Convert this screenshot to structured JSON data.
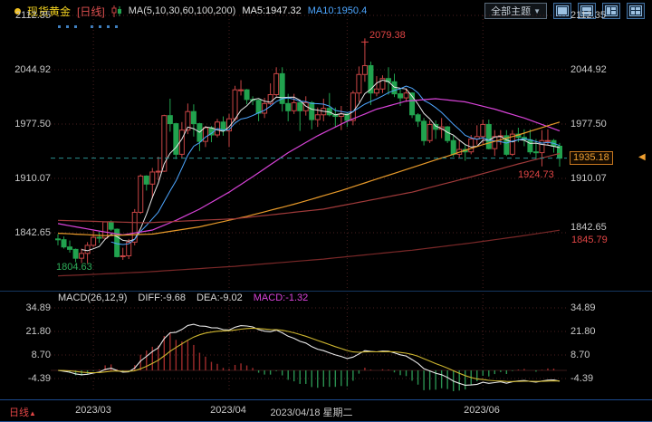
{
  "header": {
    "symbol": "现货黄金",
    "period_tag": "[日线]",
    "ma_label": "MA(5,10,30,60,100,200)",
    "ma5_label": "MA5:1947.32",
    "ma10_label": "MA10:1950.4",
    "theme_button": "全部主题",
    "theme_caret": "▼"
  },
  "main_chart": {
    "y_axis_labels": [
      "2112.35",
      "2044.92",
      "1977.50",
      "1910.07",
      "1842.65"
    ],
    "annotations": {
      "high": "2079.38",
      "last_low": "1924.73",
      "ma200_value": "1845.79",
      "start_low": "1804.63",
      "current_price": "1935.18"
    }
  },
  "macd_panel": {
    "title": "MACD(26,12,9)",
    "diff_label": "DIFF:-9.68",
    "dea_label": "DEA:-9.02",
    "macd_label": "MACD:-1.32",
    "y_axis_labels": [
      "34.89",
      "21.80",
      "8.70",
      "-4.39"
    ]
  },
  "x_axis": {
    "period_label": "日线",
    "period_caret": "▲",
    "labels": [
      "2023/03",
      "2023/04",
      "2023/06"
    ],
    "crosshair_label": "2023/04/18 星期二"
  },
  "colors": {
    "up": "#c84545",
    "down": "#21a24e",
    "ma5": "#e8e8e8",
    "ma10": "#4da6ff",
    "ma30": "#d843d8",
    "ma60": "#e89a2a",
    "ma100": "#a03a3a",
    "ma200": "#7a2828",
    "diff_line": "#e8e8e8",
    "dea_line": "#cdb52f",
    "hist_pos": "#9e2b2b",
    "hist_neg": "#2a9050",
    "grid": "#4a2020",
    "price_line": "#2a8f8f",
    "accent_orange": "#f0a030",
    "red_text": "#e04545",
    "green_text": "#2fae5a",
    "axis_text": "#c8c8c8",
    "panel_border": "#1c4a8c"
  },
  "chart_data": {
    "type": "candlestick",
    "title": "现货黄金 日线 (spot gold daily with MA overlays and MACD)",
    "y_axis_ticks": [
      2112.35,
      2044.92,
      1977.5,
      1910.07,
      1842.65
    ],
    "macd_axis_ticks": [
      34.89,
      21.8,
      8.7,
      -4.39
    ],
    "current_price": 1935.18,
    "summary": {
      "ma5": 1947.32,
      "ma10": 1950.4,
      "diff": -9.68,
      "dea": -9.02,
      "macd": -1.32,
      "period_high": 2079.38,
      "session_low": 1924.73,
      "start_low": 1804.63,
      "ma200_last": 1845.79
    },
    "month_tick_indices": [
      6,
      29,
      49,
      72
    ],
    "labeled_ticks": [
      {
        "index": 6,
        "label": "2023/03"
      },
      {
        "index": 29,
        "label": "2023/04"
      },
      {
        "index": 40,
        "label": "2023/04/18 星期二"
      },
      {
        "index": 72,
        "label": "2023/06"
      }
    ],
    "annotations": {
      "high_index": 52,
      "high": 2079.38,
      "low_index": 85,
      "low": 1924.73,
      "start_low_index": 5,
      "start_low": 1804.63
    },
    "candles": {
      "dates": [
        "02-21",
        "02-22",
        "02-23",
        "02-24",
        "02-27",
        "02-28",
        "03-01",
        "03-02",
        "03-03",
        "03-06",
        "03-07",
        "03-08",
        "03-09",
        "03-10",
        "03-13",
        "03-14",
        "03-15",
        "03-16",
        "03-17",
        "03-20",
        "03-21",
        "03-22",
        "03-23",
        "03-24",
        "03-27",
        "03-28",
        "03-29",
        "03-30",
        "03-31",
        "04-03",
        "04-04",
        "04-05",
        "04-06",
        "04-07",
        "04-10",
        "04-11",
        "04-12",
        "04-13",
        "04-14",
        "04-17",
        "04-18",
        "04-19",
        "04-20",
        "04-21",
        "04-24",
        "04-25",
        "04-26",
        "04-27",
        "04-28",
        "05-01",
        "05-02",
        "05-03",
        "05-04",
        "05-05",
        "05-08",
        "05-09",
        "05-10",
        "05-11",
        "05-12",
        "05-15",
        "05-16",
        "05-17",
        "05-18",
        "05-19",
        "05-22",
        "05-23",
        "05-24",
        "05-25",
        "05-26",
        "05-29",
        "05-30",
        "05-31",
        "06-01",
        "06-02",
        "06-05",
        "06-06",
        "06-07",
        "06-08",
        "06-09",
        "06-12",
        "06-13",
        "06-14",
        "06-15",
        "06-16",
        "06-19",
        "06-20"
      ],
      "ohlc": [
        [
          1835,
          1841,
          1827,
          1834
        ],
        [
          1834,
          1838,
          1823,
          1825
        ],
        [
          1825,
          1833,
          1818,
          1822
        ],
        [
          1822,
          1823,
          1806,
          1811
        ],
        [
          1811,
          1823,
          1805,
          1817
        ],
        [
          1817,
          1831,
          1804.63,
          1827
        ],
        [
          1827,
          1845,
          1825,
          1837
        ],
        [
          1837,
          1844,
          1830,
          1836
        ],
        [
          1836,
          1856,
          1835,
          1856
        ],
        [
          1856,
          1858,
          1845,
          1847
        ],
        [
          1847,
          1848,
          1812,
          1813
        ],
        [
          1813,
          1824,
          1809,
          1814
        ],
        [
          1814,
          1835,
          1810,
          1831
        ],
        [
          1831,
          1872,
          1827,
          1868
        ],
        [
          1868,
          1915,
          1866,
          1913
        ],
        [
          1913,
          1914,
          1895,
          1903
        ],
        [
          1903,
          1923,
          1885,
          1918
        ],
        [
          1918,
          1937,
          1908,
          1919
        ],
        [
          1919,
          1989,
          1918,
          1988
        ],
        [
          1988,
          2009,
          1968,
          1978
        ],
        [
          1978,
          1979,
          1934,
          1940
        ],
        [
          1940,
          1980,
          1936,
          1970
        ],
        [
          1970,
          2003,
          1965,
          1993
        ],
        [
          1993,
          2002,
          1962,
          1978
        ],
        [
          1978,
          1979,
          1944,
          1956
        ],
        [
          1956,
          1975,
          1949,
          1973
        ],
        [
          1973,
          1975,
          1955,
          1964
        ],
        [
          1964,
          1984,
          1961,
          1980
        ],
        [
          1980,
          1987,
          1963,
          1969
        ],
        [
          1969,
          1990,
          1949,
          1984
        ],
        [
          1984,
          2025,
          1981,
          2020
        ],
        [
          2020,
          2032,
          2013,
          2020
        ],
        [
          2020,
          2021,
          2002,
          2008
        ],
        [
          2008,
          2012,
          2001,
          2007
        ],
        [
          2007,
          2008,
          1981,
          1991
        ],
        [
          1991,
          2010,
          1985,
          2003
        ],
        [
          2003,
          2028,
          2001,
          2014
        ],
        [
          2014,
          2048,
          2012,
          2040
        ],
        [
          2040,
          2048,
          1993,
          2003
        ],
        [
          2003,
          2015,
          1981,
          1994
        ],
        [
          1994,
          2015,
          1990,
          2004
        ],
        [
          2004,
          2007,
          1969,
          1994
        ],
        [
          1994,
          2012,
          1988,
          2004
        ],
        [
          2004,
          2006,
          1971,
          1983
        ],
        [
          1983,
          1998,
          1974,
          1989
        ],
        [
          1989,
          2009,
          1981,
          1997
        ],
        [
          1997,
          2016,
          1987,
          1989
        ],
        [
          1989,
          1998,
          1974,
          1987
        ],
        [
          1987,
          2000,
          1970,
          1990
        ],
        [
          1990,
          1992,
          1974,
          1982
        ],
        [
          1982,
          2019,
          1976,
          2016
        ],
        [
          2016,
          2049,
          2005,
          2039
        ],
        [
          2039,
          2079.38,
          2030,
          2050
        ],
        [
          2050,
          2055,
          2001,
          2016
        ],
        [
          2016,
          2037,
          2012,
          2021
        ],
        [
          2021,
          2038,
          2016,
          2034
        ],
        [
          2034,
          2048,
          2014,
          2030
        ],
        [
          2030,
          2040,
          2011,
          2015
        ],
        [
          2015,
          2022,
          2000,
          2010
        ],
        [
          2010,
          2022,
          2005,
          2016
        ],
        [
          2016,
          2017,
          1985,
          1989
        ],
        [
          1989,
          1991,
          1974,
          1981
        ],
        [
          1981,
          1985,
          1951,
          1957
        ],
        [
          1957,
          1982,
          1954,
          1977
        ],
        [
          1977,
          1982,
          1959,
          1971
        ],
        [
          1971,
          1985,
          1960,
          1974
        ],
        [
          1974,
          1975,
          1954,
          1957
        ],
        [
          1957,
          1963,
          1937,
          1940
        ],
        [
          1940,
          1957,
          1936,
          1946
        ],
        [
          1946,
          1952,
          1932,
          1943
        ],
        [
          1943,
          1964,
          1940,
          1959
        ],
        [
          1959,
          1976,
          1952,
          1962
        ],
        [
          1962,
          1983,
          1953,
          1977
        ],
        [
          1977,
          1983,
          1946,
          1947
        ],
        [
          1947,
          1970,
          1938,
          1962
        ],
        [
          1962,
          1970,
          1952,
          1963
        ],
        [
          1963,
          1970,
          1938,
          1940
        ],
        [
          1940,
          1970,
          1938,
          1965
        ],
        [
          1965,
          1973,
          1955,
          1961
        ],
        [
          1961,
          1971,
          1950,
          1958
        ],
        [
          1958,
          1971,
          1940,
          1943
        ],
        [
          1943,
          1959,
          1934,
          1942
        ],
        [
          1942,
          1970,
          1925,
          1957
        ],
        [
          1957,
          1971,
          1951,
          1957
        ],
        [
          1957,
          1959,
          1942,
          1950
        ],
        [
          1950,
          1954,
          1924.73,
          1935.18
        ]
      ]
    },
    "ma_overlays": [
      {
        "name": "MA30",
        "color": "#d843d8",
        "points": [
          [
            0,
            1854
          ],
          [
            6,
            1846
          ],
          [
            11,
            1840
          ],
          [
            16,
            1846
          ],
          [
            20,
            1858
          ],
          [
            24,
            1872
          ],
          [
            29,
            1893
          ],
          [
            34,
            1917
          ],
          [
            39,
            1942
          ],
          [
            44,
            1963
          ],
          [
            49,
            1981
          ],
          [
            54,
            1996
          ],
          [
            59,
            2006
          ],
          [
            64,
            2009
          ],
          [
            69,
            2005
          ],
          [
            74,
            1996
          ],
          [
            79,
            1985
          ],
          [
            82,
            1977
          ],
          [
            85,
            1969
          ]
        ]
      },
      {
        "name": "MA60",
        "color": "#e89a2a",
        "points": [
          [
            0,
            1842
          ],
          [
            8,
            1839
          ],
          [
            16,
            1841
          ],
          [
            24,
            1850
          ],
          [
            32,
            1863
          ],
          [
            40,
            1878
          ],
          [
            48,
            1895
          ],
          [
            56,
            1914
          ],
          [
            64,
            1933
          ],
          [
            72,
            1952
          ],
          [
            78,
            1964
          ],
          [
            85,
            1980
          ]
        ]
      },
      {
        "name": "MA100",
        "color": "#a03a3a",
        "points": [
          [
            0,
            1858
          ],
          [
            15,
            1855
          ],
          [
            30,
            1860
          ],
          [
            45,
            1872
          ],
          [
            60,
            1893
          ],
          [
            70,
            1912
          ],
          [
            78,
            1928
          ],
          [
            85,
            1941
          ]
        ]
      },
      {
        "name": "MA200",
        "color": "#7a2828",
        "points": [
          [
            0,
            1789
          ],
          [
            15,
            1794
          ],
          [
            30,
            1801
          ],
          [
            45,
            1810
          ],
          [
            60,
            1821
          ],
          [
            70,
            1830
          ],
          [
            78,
            1838
          ],
          [
            85,
            1845.79
          ]
        ]
      }
    ]
  }
}
